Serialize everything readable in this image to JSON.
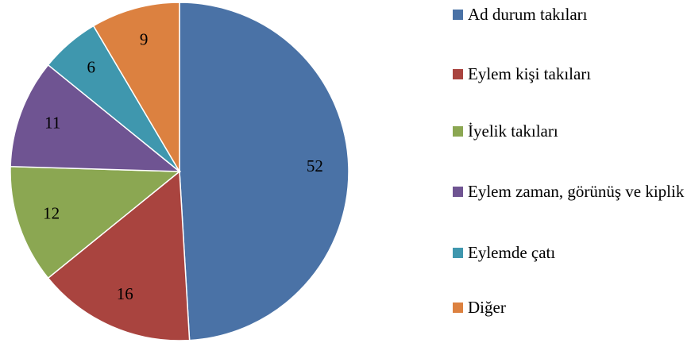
{
  "chart_data": {
    "type": "pie",
    "categories": [
      "Ad durum takıları",
      "Eylem kişi takıları",
      "İyelik takıları",
      "Eylem zaman, görünüş ve kiplik",
      "Eylemde çatı",
      "Diğer"
    ],
    "values": [
      52,
      16,
      12,
      11,
      6,
      9
    ],
    "colors": [
      "#4a72a6",
      "#a9443f",
      "#8ba752",
      "#6f5492",
      "#3f97ae",
      "#dc8140"
    ],
    "legend": "right"
  }
}
